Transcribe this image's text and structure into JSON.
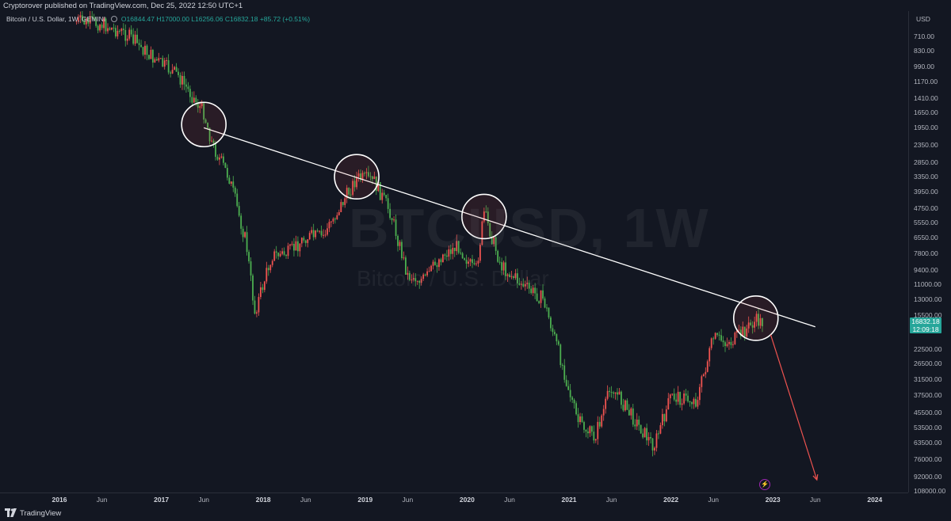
{
  "header": {
    "publisher": "Cryptorover published on TradingView.com, Dec 25, 2022 12:50 UTC+1"
  },
  "symbol": {
    "name": "Bitcoin / U.S. Dollar, 1W, GEMINI",
    "ohlc": "O16844.47 H17000.00 L16256.06 C16832.18",
    "change": "+85.72 (+0.51%)"
  },
  "watermark": {
    "symbol": "BTCUSD, 1W",
    "description": "Bitcoin / U.S. Dollar"
  },
  "price_axis": {
    "currency": "USD",
    "ticks": [
      "710.00",
      "830.00",
      "990.00",
      "1170.00",
      "1410.00",
      "1650.00",
      "1950.00",
      "2350.00",
      "2850.00",
      "3350.00",
      "3950.00",
      "4750.00",
      "5550.00",
      "6550.00",
      "7800.00",
      "9400.00",
      "11000.00",
      "13000.00",
      "15500.00",
      "22500.00",
      "26500.00",
      "31500.00",
      "37500.00",
      "45500.00",
      "53500.00",
      "63500.00",
      "76000.00",
      "92000.00",
      "108000.00"
    ],
    "price_label": "16832.18",
    "countdown": "12:09:18"
  },
  "time_axis": {
    "ticks": [
      {
        "label": "2016",
        "year": true
      },
      {
        "label": "Jun",
        "year": false
      },
      {
        "label": "2017",
        "year": true
      },
      {
        "label": "Jun",
        "year": false
      },
      {
        "label": "2018",
        "year": true
      },
      {
        "label": "Jun",
        "year": false
      },
      {
        "label": "2019",
        "year": true
      },
      {
        "label": "Jun",
        "year": false
      },
      {
        "label": "2020",
        "year": true
      },
      {
        "label": "Jun",
        "year": false
      },
      {
        "label": "2021",
        "year": true
      },
      {
        "label": "Jun",
        "year": false
      },
      {
        "label": "2022",
        "year": true
      },
      {
        "label": "Jun",
        "year": false
      },
      {
        "label": "2023",
        "year": true
      },
      {
        "label": "Jun",
        "year": false
      },
      {
        "label": "2024",
        "year": true
      }
    ]
  },
  "chart_data": {
    "type": "candlestick",
    "axis_inverted": true,
    "colors": {
      "up": "#4caf50",
      "down": "#ef5350",
      "trendline": "#ffffff",
      "projection": "#ef5350",
      "circle": "#ffffff"
    },
    "price_path": [
      [
        "2016-03",
        600
      ],
      [
        "2016-06",
        620
      ],
      [
        "2016-09",
        700
      ],
      [
        "2016-12",
        900
      ],
      [
        "2017-03",
        1100
      ],
      [
        "2017-06",
        1650
      ],
      [
        "2017-07",
        2350
      ],
      [
        "2017-09",
        3400
      ],
      [
        "2017-11",
        7000
      ],
      [
        "2017-12",
        15000
      ],
      [
        "2018-01",
        11000
      ],
      [
        "2018-02",
        8000
      ],
      [
        "2018-04",
        7800
      ],
      [
        "2018-06",
        6500
      ],
      [
        "2018-08",
        6500
      ],
      [
        "2018-11",
        4000
      ],
      [
        "2018-12",
        3400
      ],
      [
        "2019-02",
        3500
      ],
      [
        "2019-04",
        5000
      ],
      [
        "2019-06",
        10000
      ],
      [
        "2019-08",
        10500
      ],
      [
        "2019-10",
        8000
      ],
      [
        "2019-12",
        7200
      ],
      [
        "2020-02",
        9800
      ],
      [
        "2020-03",
        5000
      ],
      [
        "2020-05",
        9000
      ],
      [
        "2020-08",
        11500
      ],
      [
        "2020-10",
        13000
      ],
      [
        "2020-12",
        25000
      ],
      [
        "2021-02",
        50000
      ],
      [
        "2021-04",
        60000
      ],
      [
        "2021-06",
        34000
      ],
      [
        "2021-08",
        45000
      ],
      [
        "2021-11",
        66000
      ],
      [
        "2022-01",
        38000
      ],
      [
        "2022-04",
        40000
      ],
      [
        "2022-06",
        20000
      ],
      [
        "2022-08",
        21000
      ],
      [
        "2022-11",
        16500
      ],
      [
        "2022-12",
        16832.18
      ]
    ],
    "trendline": [
      [
        "2017-06",
        1950
      ],
      [
        "2023-06",
        17600
      ]
    ],
    "touch_points": [
      [
        "2017-06",
        1880
      ],
      [
        "2018-12",
        3350
      ],
      [
        "2020-03",
        5200
      ],
      [
        "2022-11",
        16000
      ]
    ],
    "projection": [
      [
        "2022-12",
        17000
      ],
      [
        "2023-06",
        100000
      ]
    ]
  }
}
